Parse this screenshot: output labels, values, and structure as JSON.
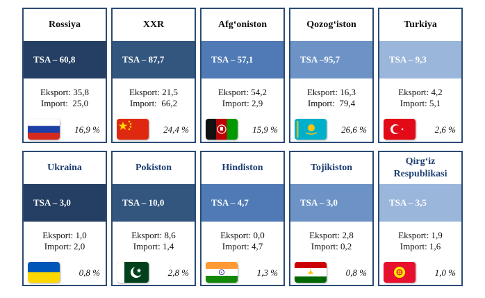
{
  "cards": [
    {
      "name": "Rossiya",
      "tsa": "TSA – 60,8",
      "export": "Eksport: 35,8",
      "import": "Import:  25,0",
      "share": "16,9 %",
      "flag_icon": "russia-flag-icon",
      "band_color": "#243f63"
    },
    {
      "name": "XXR",
      "tsa": "TSA – 87,7",
      "export": "Eksport: 21,5",
      "import": "Import:  66,2",
      "share": "24,4 %",
      "flag_icon": "china-flag-icon",
      "band_color": "#33567f"
    },
    {
      "name": "Afg‘oniston",
      "tsa": "TSA – 57,1",
      "export": "Eksport: 54,2",
      "import": "Import: 2,9",
      "share": "15,9 %",
      "flag_icon": "afghanistan-flag-icon",
      "band_color": "#4f7ab5"
    },
    {
      "name": "Qozog‘iston",
      "tsa": "TSA –95,7",
      "export": "Eksport: 16,3",
      "import": "Import:  79,4",
      "share": "26,6 %",
      "flag_icon": "kazakhstan-flag-icon",
      "band_color": "#6d93c6"
    },
    {
      "name": "Turkiya",
      "tsa": "TSA – 9,3",
      "export": "Eksport: 4,2",
      "import": "Import: 5,1",
      "share": "2,6 %",
      "flag_icon": "turkey-flag-icon",
      "band_color": "#9ab6db"
    },
    {
      "name": "Ukraina",
      "tsa": "TSA – 3,0",
      "export": "Eksport: 1,0",
      "import": "Import: 2,0",
      "share": "0,8 %",
      "flag_icon": "ukraine-flag-icon",
      "band_color": "#243f63"
    },
    {
      "name": "Pokiston",
      "tsa": "TSA – 10,0",
      "export": "Eksport: 8,6",
      "import": "Import: 1,4",
      "share": "2,8 %",
      "flag_icon": "pakistan-flag-icon",
      "band_color": "#33567f"
    },
    {
      "name": "Hindiston",
      "tsa": "TSA – 4,7",
      "export": "Eksport: 0,0",
      "import": "Import: 4,7",
      "share": "1,3 %",
      "flag_icon": "india-flag-icon",
      "band_color": "#4f7ab5"
    },
    {
      "name": "Tojikiston",
      "tsa": "TSA – 3,0",
      "export": "Eksport: 2,8",
      "import": "Import: 0,2",
      "share": "0,8 %",
      "flag_icon": "tajikistan-flag-icon",
      "band_color": "#6d93c6"
    },
    {
      "name": "Qirg‘iz Respublikasi",
      "tsa": "TSA – 3,5",
      "export": "Eksport: 1,9",
      "import": "Import: 1,6",
      "share": "1,0 %",
      "flag_icon": "kyrgyzstan-flag-icon",
      "band_color": "#9ab6db"
    }
  ]
}
